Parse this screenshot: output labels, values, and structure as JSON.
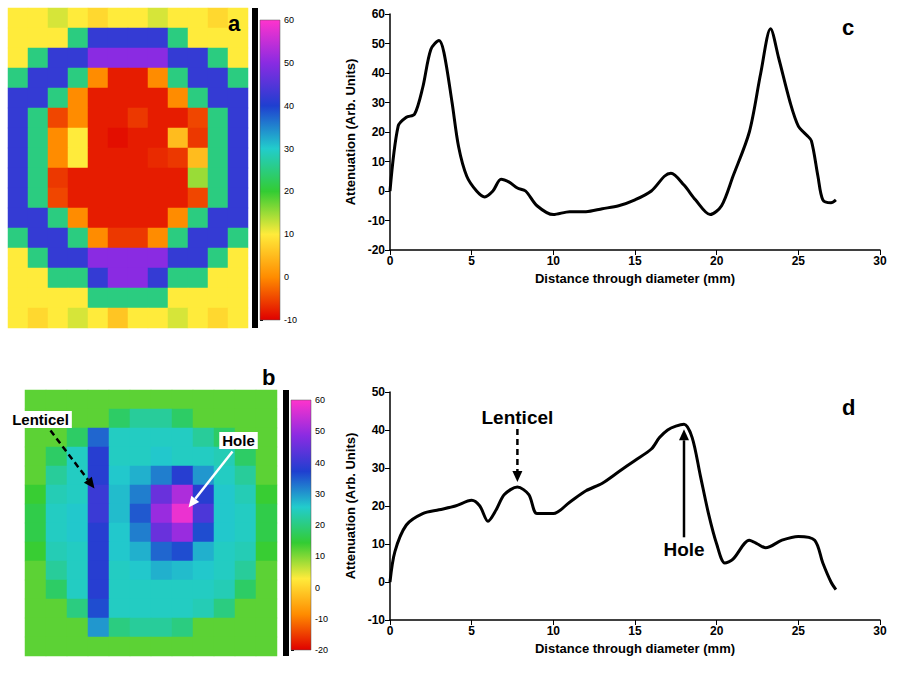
{
  "chart_data": [
    {
      "panel": "a",
      "type": "heatmap",
      "tick_labels": false,
      "cells": [
        [
          10,
          10,
          12,
          10,
          8,
          10,
          10,
          12,
          10,
          10,
          8,
          10
        ],
        [
          10,
          10,
          10,
          25,
          42,
          42,
          42,
          42,
          25,
          10,
          10,
          10
        ],
        [
          10,
          25,
          42,
          42,
          50,
          50,
          50,
          50,
          42,
          42,
          25,
          10
        ],
        [
          25,
          42,
          42,
          25,
          0,
          -8,
          -8,
          0,
          25,
          42,
          42,
          25
        ],
        [
          42,
          42,
          25,
          0,
          -8,
          -8,
          -8,
          -8,
          0,
          25,
          42,
          42
        ],
        [
          42,
          25,
          -5,
          0,
          -8,
          -8,
          -6,
          -8,
          -8,
          -5,
          25,
          42
        ],
        [
          42,
          25,
          0,
          10,
          -8,
          -9,
          -8,
          -8,
          5,
          -6,
          25,
          42
        ],
        [
          42,
          25,
          0,
          10,
          -8,
          -8,
          -8,
          -7,
          -6,
          5,
          25,
          42
        ],
        [
          42,
          25,
          -6,
          -8,
          -8,
          -8,
          -8,
          -8,
          -8,
          15,
          25,
          42
        ],
        [
          42,
          25,
          -5,
          -8,
          -8,
          -8,
          -8,
          -8,
          -8,
          -5,
          25,
          42
        ],
        [
          42,
          42,
          25,
          0,
          -8,
          -8,
          -8,
          -8,
          0,
          25,
          42,
          42
        ],
        [
          25,
          42,
          42,
          25,
          0,
          -6,
          -6,
          0,
          25,
          42,
          42,
          25
        ],
        [
          10,
          25,
          42,
          42,
          50,
          50,
          50,
          50,
          42,
          42,
          25,
          10
        ],
        [
          10,
          10,
          25,
          25,
          42,
          50,
          50,
          42,
          25,
          25,
          10,
          10
        ],
        [
          10,
          10,
          10,
          10,
          25,
          25,
          25,
          25,
          10,
          10,
          10,
          10
        ],
        [
          10,
          8,
          10,
          12,
          10,
          6,
          10,
          10,
          12,
          10,
          8,
          10
        ]
      ],
      "colorbar": {
        "range": [
          -10,
          60
        ],
        "ticks": [
          -10,
          0,
          10,
          20,
          30,
          40,
          50,
          60
        ],
        "colors": [
          "#e00000",
          "#ff8c00",
          "#ffeb3b",
          "#33cc33",
          "#22cccc",
          "#1f3fd0",
          "#8a2be2",
          "#ff33cc"
        ]
      }
    },
    {
      "panel": "b",
      "type": "heatmap",
      "tick_labels": false,
      "cells": [
        [
          12,
          12,
          12,
          12,
          12,
          12,
          12,
          12,
          12,
          12,
          12,
          12
        ],
        [
          12,
          12,
          12,
          12,
          18,
          22,
          22,
          18,
          12,
          12,
          12,
          12
        ],
        [
          12,
          12,
          18,
          34,
          25,
          25,
          25,
          25,
          22,
          18,
          12,
          12
        ],
        [
          12,
          18,
          25,
          38,
          25,
          25,
          26,
          25,
          25,
          24,
          18,
          12
        ],
        [
          12,
          22,
          25,
          38,
          26,
          28,
          32,
          38,
          30,
          25,
          22,
          12
        ],
        [
          14,
          24,
          25,
          40,
          27,
          32,
          45,
          52,
          38,
          26,
          24,
          14
        ],
        [
          16,
          25,
          26,
          40,
          27,
          35,
          50,
          58,
          42,
          26,
          25,
          16
        ],
        [
          16,
          25,
          26,
          38,
          26,
          32,
          45,
          50,
          36,
          26,
          25,
          16
        ],
        [
          14,
          24,
          25,
          38,
          26,
          28,
          34,
          36,
          28,
          25,
          24,
          14
        ],
        [
          12,
          22,
          25,
          38,
          25,
          26,
          28,
          27,
          26,
          25,
          22,
          12
        ],
        [
          12,
          18,
          25,
          38,
          25,
          25,
          25,
          25,
          25,
          24,
          18,
          12
        ],
        [
          12,
          12,
          20,
          36,
          25,
          25,
          25,
          25,
          24,
          20,
          12,
          12
        ],
        [
          12,
          12,
          12,
          30,
          20,
          22,
          22,
          20,
          12,
          12,
          12,
          12
        ],
        [
          12,
          12,
          12,
          12,
          12,
          12,
          12,
          12,
          12,
          12,
          12,
          12
        ]
      ],
      "colorbar": {
        "range": [
          -20,
          60
        ],
        "ticks": [
          -20,
          -10,
          0,
          10,
          20,
          30,
          40,
          50,
          60
        ],
        "colors": [
          "#e00000",
          "#ff8c00",
          "#ffeb3b",
          "#33cc33",
          "#22cccc",
          "#1f3fd0",
          "#8a2be2",
          "#ff33cc"
        ]
      },
      "annotations": [
        {
          "text": "Lenticel",
          "col": 3,
          "row": 5,
          "line_style": "dashed"
        },
        {
          "text": "Hole",
          "col": 7,
          "row": 6,
          "line_style": "solid"
        }
      ]
    },
    {
      "panel": "c",
      "type": "line",
      "color": "#000000",
      "grid": false,
      "x_label": "Distance through diameter (mm)",
      "y_label": "Attenuation (Arb. Units)",
      "x": [
        0,
        0.5,
        1,
        1.5,
        2,
        2.5,
        3,
        3.3,
        3.8,
        4.2,
        4.7,
        5.3,
        5.8,
        6.3,
        6.8,
        7.3,
        7.8,
        8.3,
        9,
        10,
        11,
        12,
        13,
        14,
        15,
        16,
        16.8,
        17.2,
        18,
        18.7,
        19.6,
        20.3,
        21,
        22,
        22.7,
        23.3,
        23.8,
        24.5,
        25,
        25.5,
        25.8,
        26.2,
        26.5,
        27,
        27.3
      ],
      "values": [
        0,
        22,
        25,
        26,
        35,
        48,
        51,
        47,
        30,
        15,
        5,
        0,
        -2,
        0,
        4,
        3,
        1,
        0,
        -5,
        -8,
        -7,
        -7,
        -6,
        -5,
        -3,
        0,
        5,
        6,
        2,
        -3,
        -8,
        -5,
        5,
        20,
        40,
        55,
        45,
        30,
        22,
        19,
        17,
        5,
        -3,
        -4,
        -3
      ],
      "xlim": [
        0,
        30
      ],
      "xticks": [
        0,
        5,
        10,
        15,
        20,
        25,
        30
      ],
      "ylim": [
        -20,
        60
      ],
      "yticks": [
        -20,
        -10,
        0,
        10,
        20,
        30,
        40,
        50,
        60
      ]
    },
    {
      "panel": "d",
      "type": "line",
      "color": "#000000",
      "grid": false,
      "x_label": "Distance through diameter (mm)",
      "y_label": "Attenuation (Arb. Units)",
      "x": [
        0,
        0.3,
        1,
        2,
        3,
        4,
        5,
        5.5,
        6,
        6.5,
        7,
        7.8,
        8.5,
        9,
        10,
        11,
        12,
        13,
        14,
        15,
        16,
        16.5,
        17,
        17.5,
        18,
        18.5,
        19,
        19.5,
        20,
        20.5,
        21,
        22,
        22.5,
        23,
        24,
        25,
        26,
        26.5,
        27,
        27.3
      ],
      "values": [
        0,
        8,
        15,
        18,
        19,
        20,
        21.5,
        20,
        16,
        19,
        23,
        25,
        23,
        18,
        18,
        21,
        24,
        26,
        29,
        32,
        35,
        38,
        40,
        41,
        41.5,
        38,
        28,
        18,
        10,
        5,
        6,
        11,
        10,
        9,
        11,
        12,
        11,
        5,
        0,
        -2
      ],
      "xlim": [
        0,
        30
      ],
      "xticks": [
        0,
        5,
        10,
        15,
        20,
        25,
        30
      ],
      "ylim": [
        -10,
        50
      ],
      "yticks": [
        -10,
        0,
        10,
        20,
        30,
        40,
        50
      ],
      "annotations": [
        {
          "text": "Lenticel",
          "x": 7.8,
          "y": 25,
          "line_style": "dashed"
        },
        {
          "text": "Hole",
          "x": 18,
          "y": 41.5,
          "line_style": "solid"
        }
      ]
    }
  ]
}
